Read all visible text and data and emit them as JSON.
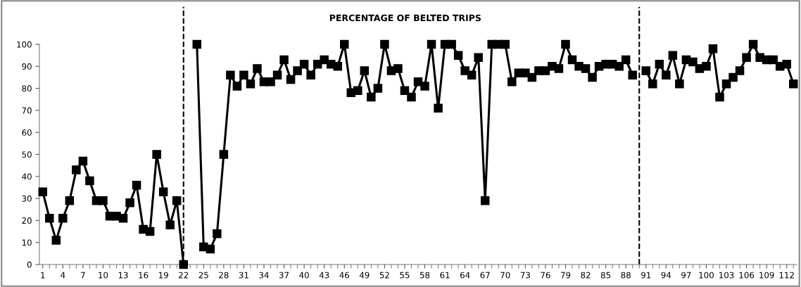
{
  "chart_data": {
    "type": "line",
    "title": "PERCENTAGE OF BELTED TRIPS",
    "x": [
      1,
      2,
      3,
      4,
      5,
      6,
      7,
      8,
      9,
      10,
      11,
      12,
      13,
      14,
      15,
      16,
      17,
      18,
      19,
      20,
      21,
      22,
      23,
      24,
      25,
      26,
      27,
      28,
      29,
      30,
      31,
      32,
      33,
      34,
      35,
      36,
      37,
      38,
      39,
      40,
      41,
      42,
      43,
      44,
      45,
      46,
      47,
      48,
      49,
      50,
      51,
      52,
      53,
      54,
      55,
      56,
      57,
      58,
      59,
      60,
      61,
      62,
      63,
      64,
      65,
      66,
      67,
      68,
      69,
      70,
      71,
      72,
      73,
      74,
      75,
      76,
      77,
      78,
      79,
      80,
      81,
      82,
      83,
      84,
      85,
      86,
      87,
      88,
      89,
      90,
      91,
      92,
      93,
      94,
      95,
      96,
      97,
      98,
      99,
      100,
      101,
      102,
      103,
      104,
      105,
      106,
      107,
      108,
      109,
      110,
      111,
      112,
      113
    ],
    "series": [
      {
        "color": "#000000",
        "values": [
          33,
          21,
          11,
          21,
          29,
          43,
          47,
          38,
          29,
          29,
          22,
          22,
          21,
          28,
          36,
          16,
          15,
          50,
          33,
          18,
          29,
          0,
          null,
          100,
          8,
          7,
          14,
          50,
          86,
          81,
          86,
          82,
          89,
          83,
          83,
          86,
          93,
          84,
          88,
          91,
          86,
          91,
          93,
          91,
          90,
          100,
          78,
          79,
          88,
          76,
          80,
          100,
          88,
          89,
          79,
          76,
          83,
          81,
          100,
          71,
          100,
          100,
          95,
          88,
          86,
          94,
          29,
          100,
          100,
          100,
          83,
          87,
          87,
          85,
          88,
          88,
          90,
          89,
          100,
          93,
          90,
          89,
          85,
          90,
          91,
          91,
          90,
          93,
          86,
          null,
          88,
          82,
          91,
          86,
          95,
          82,
          93,
          92,
          89,
          90,
          98,
          76,
          82,
          85,
          88,
          94,
          100,
          94,
          93,
          93,
          90,
          91,
          82
        ]
      }
    ],
    "xlim": [
      0.5,
      113.5
    ],
    "xticks": [
      1,
      4,
      7,
      10,
      13,
      16,
      19,
      22,
      25,
      28,
      31,
      34,
      37,
      40,
      43,
      46,
      49,
      52,
      55,
      58,
      61,
      64,
      67,
      70,
      73,
      76,
      79,
      82,
      85,
      88,
      91,
      94,
      97,
      100,
      103,
      106,
      109,
      112
    ],
    "ylim": [
      0,
      100
    ],
    "yticks": [
      0,
      10,
      20,
      30,
      40,
      50,
      60,
      70,
      80,
      90,
      100
    ],
    "ref_lines": [
      {
        "axis": "x",
        "value": 22,
        "color": "#000000",
        "line_style": "dashed"
      },
      {
        "axis": "x",
        "value": 90,
        "color": "#000000",
        "line_style": "dashed"
      }
    ],
    "marker": "square",
    "line_style": "solid",
    "grid": false,
    "legend": false
  }
}
